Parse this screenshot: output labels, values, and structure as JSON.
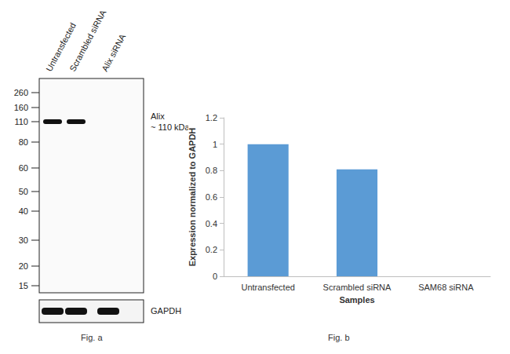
{
  "chart_data": {
    "type": "bar",
    "categories": [
      "Untransfected",
      "Scrambled siRNA",
      "SAM68 siRNA"
    ],
    "values": [
      1,
      0.81,
      0
    ],
    "color": "#5b9bd5",
    "ylim": [
      0,
      1.2
    ],
    "yticks": [
      0,
      0.2,
      0.4,
      0.6,
      0.8,
      1,
      1.2
    ],
    "y_label": "Expression normalized to GAPDH",
    "x_label": "Samples",
    "grid": false
  },
  "blot": {
    "lanes": [
      {
        "label": "Untransfected",
        "alix_band": true
      },
      {
        "label": "Scrambled siRNA",
        "alix_band": true
      },
      {
        "label": "Alix siRNA",
        "alix_band": false
      }
    ],
    "markers_kda": [
      260,
      160,
      110,
      80,
      60,
      50,
      40,
      30,
      20,
      15
    ],
    "target_label": "Alix",
    "target_size": "~ 110 kDa",
    "target_marker_kda": 110,
    "loading_control": "GAPDH"
  },
  "captions": [
    "Fig. a",
    "Fig. b"
  ]
}
